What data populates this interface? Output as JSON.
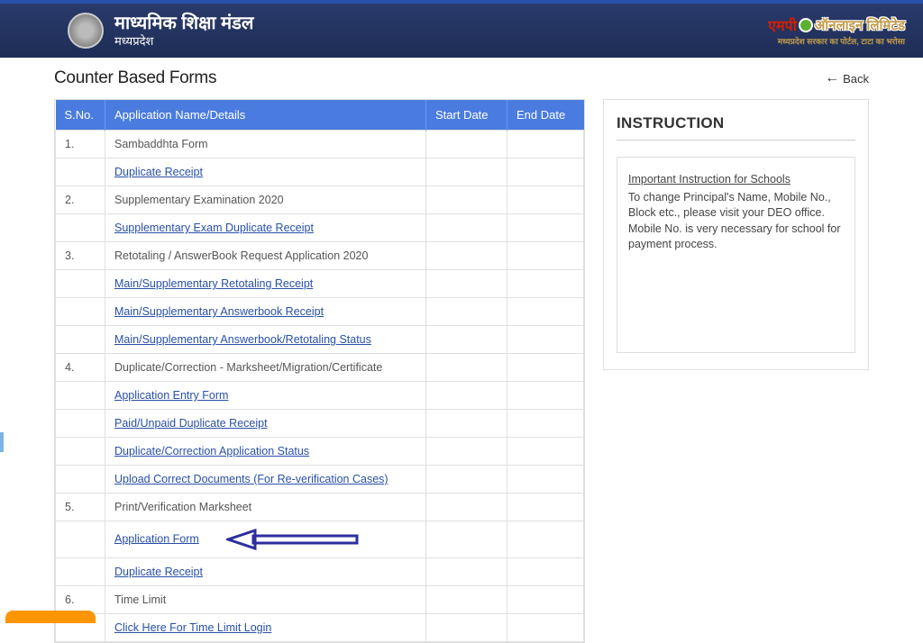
{
  "header": {
    "title_main": "माध्यमिक शिक्षा मंडल",
    "title_sub": "मध्यप्रदेश",
    "mponline_left": "एमपी",
    "mponline_right": "ऑनलाइन लिमिटेड",
    "mponline_tag": "मध्यप्रदेश सरकार का पोर्टल, टाटा का भरोसा"
  },
  "page": {
    "title": "Counter Based Forms",
    "back_label": "Back"
  },
  "table": {
    "headers": {
      "sno": "S.No.",
      "name": "Application Name/Details",
      "start": "Start Date",
      "end": "End Date"
    },
    "rows": [
      {
        "sno": "1.",
        "text": "Sambaddhta Form",
        "link": false
      },
      {
        "sno": "",
        "text": "Duplicate Receipt",
        "link": true
      },
      {
        "sno": "2.",
        "text": "Supplementary Examination 2020",
        "link": false
      },
      {
        "sno": "",
        "text": "Supplementary Exam Duplicate Receipt",
        "link": true
      },
      {
        "sno": "3.",
        "text": "Retotaling / AnswerBook Request Application 2020",
        "link": false
      },
      {
        "sno": "",
        "text": "Main/Supplementary Retotaling Receipt",
        "link": true
      },
      {
        "sno": "",
        "text": "Main/Supplementary Answerbook Receipt",
        "link": true
      },
      {
        "sno": "",
        "text": "Main/Supplementary Answerbook/Retotaling Status",
        "link": true
      },
      {
        "sno": "4.",
        "text": "Duplicate/Correction - Marksheet/Migration/Certificate",
        "link": false
      },
      {
        "sno": "",
        "text": "Application Entry Form",
        "link": true
      },
      {
        "sno": "",
        "text": "Paid/Unpaid Duplicate Receipt",
        "link": true
      },
      {
        "sno": "",
        "text": "Duplicate/Correction Application Status",
        "link": true
      },
      {
        "sno": "",
        "text": "Upload Correct Documents (For Re-verification Cases)",
        "link": true
      },
      {
        "sno": "5.",
        "text": "Print/Verification Marksheet",
        "link": false
      },
      {
        "sno": "",
        "text": "Application Form",
        "link": true,
        "arrow": true
      },
      {
        "sno": "",
        "text": "Duplicate Receipt",
        "link": true
      },
      {
        "sno": "6.",
        "text": "Time Limit",
        "link": false
      },
      {
        "sno": "",
        "text": "Click Here For Time Limit Login",
        "link": true
      }
    ]
  },
  "instruction": {
    "title": "INSTRUCTION",
    "heading": "Important Instruction for Schools",
    "body": "To change Principal's Name, Mobile No., Block etc., please visit your DEO office. Mobile No. is very necessary for school for payment process."
  },
  "colors": {
    "header_bg": "#223367",
    "th_bg": "#4a7ce0",
    "link": "#2850a8",
    "border": "#e0e0e0",
    "arrow": "#2c2e9e"
  }
}
